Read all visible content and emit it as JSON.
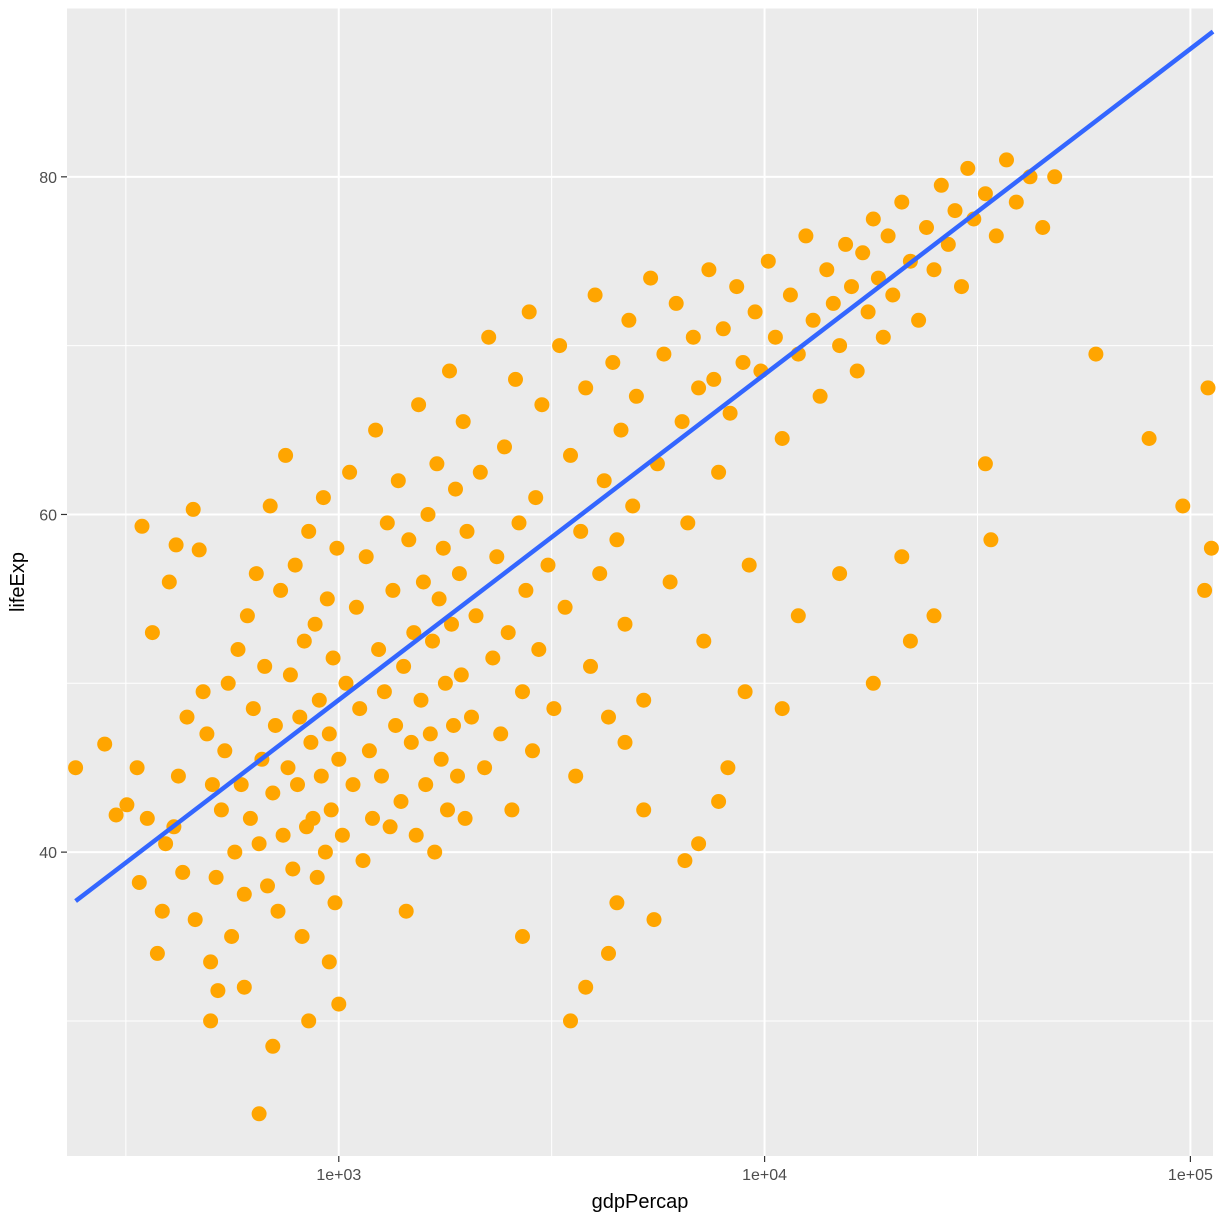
{
  "chart_data": {
    "type": "scatter",
    "xlabel": "gdpPercap",
    "ylabel": "lifeExp",
    "x_scale": "log10",
    "xlim": [
      230,
      113000
    ],
    "ylim": [
      22,
      90
    ],
    "x_ticks": [
      {
        "value": 1000,
        "label": "1e+03"
      },
      {
        "value": 10000,
        "label": "1e+04"
      },
      {
        "value": 100000,
        "label": "1e+05"
      }
    ],
    "y_ticks": [
      {
        "value": 40,
        "label": "40"
      },
      {
        "value": 60,
        "label": "60"
      },
      {
        "value": 80,
        "label": "80"
      }
    ],
    "grid": true,
    "point_color": "#FFA500",
    "trend_color": "#3366FF",
    "panel_color": "#EBEBEB",
    "trend_line": [
      {
        "x": 241,
        "y": 37.1
      },
      {
        "x": 113000,
        "y": 88.6
      }
    ],
    "points": [
      [
        241,
        45.0
      ],
      [
        282,
        46.4
      ],
      [
        300,
        42.2
      ],
      [
        318,
        42.8
      ],
      [
        336,
        45.0
      ],
      [
        340,
        38.2
      ],
      [
        345,
        59.3
      ],
      [
        355,
        42.0
      ],
      [
        365,
        53.0
      ],
      [
        375,
        34.0
      ],
      [
        385,
        36.5
      ],
      [
        392,
        40.5
      ],
      [
        400,
        56.0
      ],
      [
        410,
        41.5
      ],
      [
        415,
        58.2
      ],
      [
        420,
        44.5
      ],
      [
        430,
        38.8
      ],
      [
        440,
        48.0
      ],
      [
        455,
        60.3
      ],
      [
        460,
        36.0
      ],
      [
        470,
        57.9
      ],
      [
        480,
        49.5
      ],
      [
        490,
        47.0
      ],
      [
        500,
        33.5
      ],
      [
        505,
        44.0
      ],
      [
        515,
        38.5
      ],
      [
        520,
        31.8
      ],
      [
        530,
        42.5
      ],
      [
        540,
        46.0
      ],
      [
        550,
        50.0
      ],
      [
        560,
        35.0
      ],
      [
        570,
        40.0
      ],
      [
        580,
        52.0
      ],
      [
        590,
        44.0
      ],
      [
        600,
        37.5
      ],
      [
        610,
        54.0
      ],
      [
        620,
        42.0
      ],
      [
        630,
        48.5
      ],
      [
        640,
        56.5
      ],
      [
        650,
        40.5
      ],
      [
        660,
        45.5
      ],
      [
        670,
        51.0
      ],
      [
        680,
        38.0
      ],
      [
        690,
        60.5
      ],
      [
        700,
        43.5
      ],
      [
        710,
        47.5
      ],
      [
        720,
        36.5
      ],
      [
        730,
        55.5
      ],
      [
        740,
        41.0
      ],
      [
        750,
        63.5
      ],
      [
        760,
        45.0
      ],
      [
        770,
        50.5
      ],
      [
        780,
        39.0
      ],
      [
        790,
        57.0
      ],
      [
        800,
        44.0
      ],
      [
        810,
        48.0
      ],
      [
        820,
        35.0
      ],
      [
        830,
        52.5
      ],
      [
        840,
        41.5
      ],
      [
        850,
        59.0
      ],
      [
        860,
        46.5
      ],
      [
        870,
        42.0
      ],
      [
        880,
        53.5
      ],
      [
        890,
        38.5
      ],
      [
        900,
        49.0
      ],
      [
        910,
        44.5
      ],
      [
        920,
        61.0
      ],
      [
        930,
        40.0
      ],
      [
        940,
        55.0
      ],
      [
        950,
        47.0
      ],
      [
        960,
        42.5
      ],
      [
        970,
        51.5
      ],
      [
        980,
        37.0
      ],
      [
        990,
        58.0
      ],
      [
        1000,
        45.5
      ],
      [
        1020,
        41.0
      ],
      [
        1040,
        50.0
      ],
      [
        1060,
        62.5
      ],
      [
        1080,
        44.0
      ],
      [
        1100,
        54.5
      ],
      [
        1120,
        48.5
      ],
      [
        1140,
        39.5
      ],
      [
        1160,
        57.5
      ],
      [
        1180,
        46.0
      ],
      [
        1200,
        42.0
      ],
      [
        1220,
        65.0
      ],
      [
        1240,
        52.0
      ],
      [
        1260,
        44.5
      ],
      [
        1280,
        49.5
      ],
      [
        1300,
        59.5
      ],
      [
        1320,
        41.5
      ],
      [
        1340,
        55.5
      ],
      [
        1360,
        47.5
      ],
      [
        1380,
        62.0
      ],
      [
        1400,
        43.0
      ],
      [
        1420,
        51.0
      ],
      [
        1440,
        36.5
      ],
      [
        1460,
        58.5
      ],
      [
        1480,
        46.5
      ],
      [
        1500,
        53.0
      ],
      [
        1520,
        41.0
      ],
      [
        1540,
        66.5
      ],
      [
        1560,
        49.0
      ],
      [
        1580,
        56.0
      ],
      [
        1600,
        44.0
      ],
      [
        1620,
        60.0
      ],
      [
        1640,
        47.0
      ],
      [
        1660,
        52.5
      ],
      [
        1680,
        40.0
      ],
      [
        1700,
        63.0
      ],
      [
        1720,
        55.0
      ],
      [
        1740,
        45.5
      ],
      [
        1760,
        58.0
      ],
      [
        1780,
        50.0
      ],
      [
        1800,
        42.5
      ],
      [
        1820,
        68.5
      ],
      [
        1840,
        53.5
      ],
      [
        1860,
        47.5
      ],
      [
        1880,
        61.5
      ],
      [
        1900,
        44.5
      ],
      [
        1920,
        56.5
      ],
      [
        1940,
        50.5
      ],
      [
        1960,
        65.5
      ],
      [
        1980,
        42.0
      ],
      [
        2000,
        59.0
      ],
      [
        2050,
        48.0
      ],
      [
        2100,
        54.0
      ],
      [
        2150,
        62.5
      ],
      [
        2200,
        45.0
      ],
      [
        2250,
        70.5
      ],
      [
        2300,
        51.5
      ],
      [
        2350,
        57.5
      ],
      [
        2400,
        47.0
      ],
      [
        2450,
        64.0
      ],
      [
        2500,
        53.0
      ],
      [
        2550,
        42.5
      ],
      [
        2600,
        68.0
      ],
      [
        2650,
        59.5
      ],
      [
        2700,
        49.5
      ],
      [
        2750,
        55.5
      ],
      [
        2800,
        72.0
      ],
      [
        2850,
        46.0
      ],
      [
        2900,
        61.0
      ],
      [
        2950,
        52.0
      ],
      [
        3000,
        66.5
      ],
      [
        3100,
        57.0
      ],
      [
        3200,
        48.5
      ],
      [
        3300,
        70.0
      ],
      [
        3400,
        54.5
      ],
      [
        3500,
        63.5
      ],
      [
        3600,
        44.5
      ],
      [
        3700,
        59.0
      ],
      [
        3800,
        67.5
      ],
      [
        3900,
        51.0
      ],
      [
        4000,
        73.0
      ],
      [
        4100,
        56.5
      ],
      [
        4200,
        62.0
      ],
      [
        4300,
        48.0
      ],
      [
        4400,
        69.0
      ],
      [
        4500,
        58.5
      ],
      [
        4600,
        65.0
      ],
      [
        4700,
        53.5
      ],
      [
        4800,
        71.5
      ],
      [
        4900,
        60.5
      ],
      [
        5000,
        67.0
      ],
      [
        5200,
        49.0
      ],
      [
        5400,
        74.0
      ],
      [
        5600,
        63.0
      ],
      [
        5800,
        69.5
      ],
      [
        6000,
        56.0
      ],
      [
        6200,
        72.5
      ],
      [
        6400,
        65.5
      ],
      [
        6600,
        59.5
      ],
      [
        6800,
        70.5
      ],
      [
        7000,
        67.5
      ],
      [
        7200,
        52.5
      ],
      [
        7400,
        74.5
      ],
      [
        7600,
        68.0
      ],
      [
        7800,
        62.5
      ],
      [
        8000,
        71.0
      ],
      [
        8300,
        66.0
      ],
      [
        8600,
        73.5
      ],
      [
        8900,
        69.0
      ],
      [
        9200,
        57.0
      ],
      [
        9500,
        72.0
      ],
      [
        9800,
        68.5
      ],
      [
        10200,
        75.0
      ],
      [
        10600,
        70.5
      ],
      [
        11000,
        64.5
      ],
      [
        11500,
        73.0
      ],
      [
        12000,
        69.5
      ],
      [
        12500,
        76.5
      ],
      [
        13000,
        71.5
      ],
      [
        13500,
        67.0
      ],
      [
        14000,
        74.5
      ],
      [
        14500,
        72.5
      ],
      [
        15000,
        70.0
      ],
      [
        15500,
        76.0
      ],
      [
        16000,
        73.5
      ],
      [
        16500,
        68.5
      ],
      [
        17000,
        75.5
      ],
      [
        17500,
        72.0
      ],
      [
        18000,
        77.5
      ],
      [
        18500,
        74.0
      ],
      [
        19000,
        70.5
      ],
      [
        19500,
        76.5
      ],
      [
        20000,
        73.0
      ],
      [
        21000,
        78.5
      ],
      [
        22000,
        75.0
      ],
      [
        23000,
        71.5
      ],
      [
        24000,
        77.0
      ],
      [
        25000,
        74.5
      ],
      [
        26000,
        79.5
      ],
      [
        27000,
        76.0
      ],
      [
        28000,
        78.0
      ],
      [
        29000,
        73.5
      ],
      [
        30000,
        80.5
      ],
      [
        31000,
        77.5
      ],
      [
        33000,
        79.0
      ],
      [
        35000,
        76.5
      ],
      [
        37000,
        81.0
      ],
      [
        39000,
        78.5
      ],
      [
        42000,
        80.0
      ],
      [
        45000,
        77.0
      ],
      [
        48000,
        80.0
      ],
      [
        5500,
        36.0
      ],
      [
        4500,
        37.0
      ],
      [
        6500,
        39.5
      ],
      [
        7000,
        40.5
      ],
      [
        3500,
        30.0
      ],
      [
        3800,
        32.0
      ],
      [
        4300,
        34.0
      ],
      [
        2700,
        35.0
      ],
      [
        1000,
        31.0
      ],
      [
        850,
        30.0
      ],
      [
        650,
        24.5
      ],
      [
        700,
        28.5
      ],
      [
        500,
        30.0
      ],
      [
        600,
        32.0
      ],
      [
        950,
        33.5
      ],
      [
        12000,
        54.0
      ],
      [
        15000,
        56.5
      ],
      [
        18000,
        50.0
      ],
      [
        22000,
        52.5
      ],
      [
        25000,
        54.0
      ],
      [
        33000,
        63.0
      ],
      [
        34000,
        58.5
      ],
      [
        21000,
        57.5
      ],
      [
        60000,
        69.5
      ],
      [
        80000,
        64.5
      ],
      [
        96000,
        60.5
      ],
      [
        108000,
        55.5
      ],
      [
        112000,
        58.0
      ],
      [
        110000,
        67.5
      ],
      [
        9000,
        49.5
      ],
      [
        11000,
        48.5
      ],
      [
        7800,
        43.0
      ],
      [
        8200,
        45.0
      ],
      [
        5200,
        42.5
      ],
      [
        4700,
        46.5
      ]
    ]
  }
}
